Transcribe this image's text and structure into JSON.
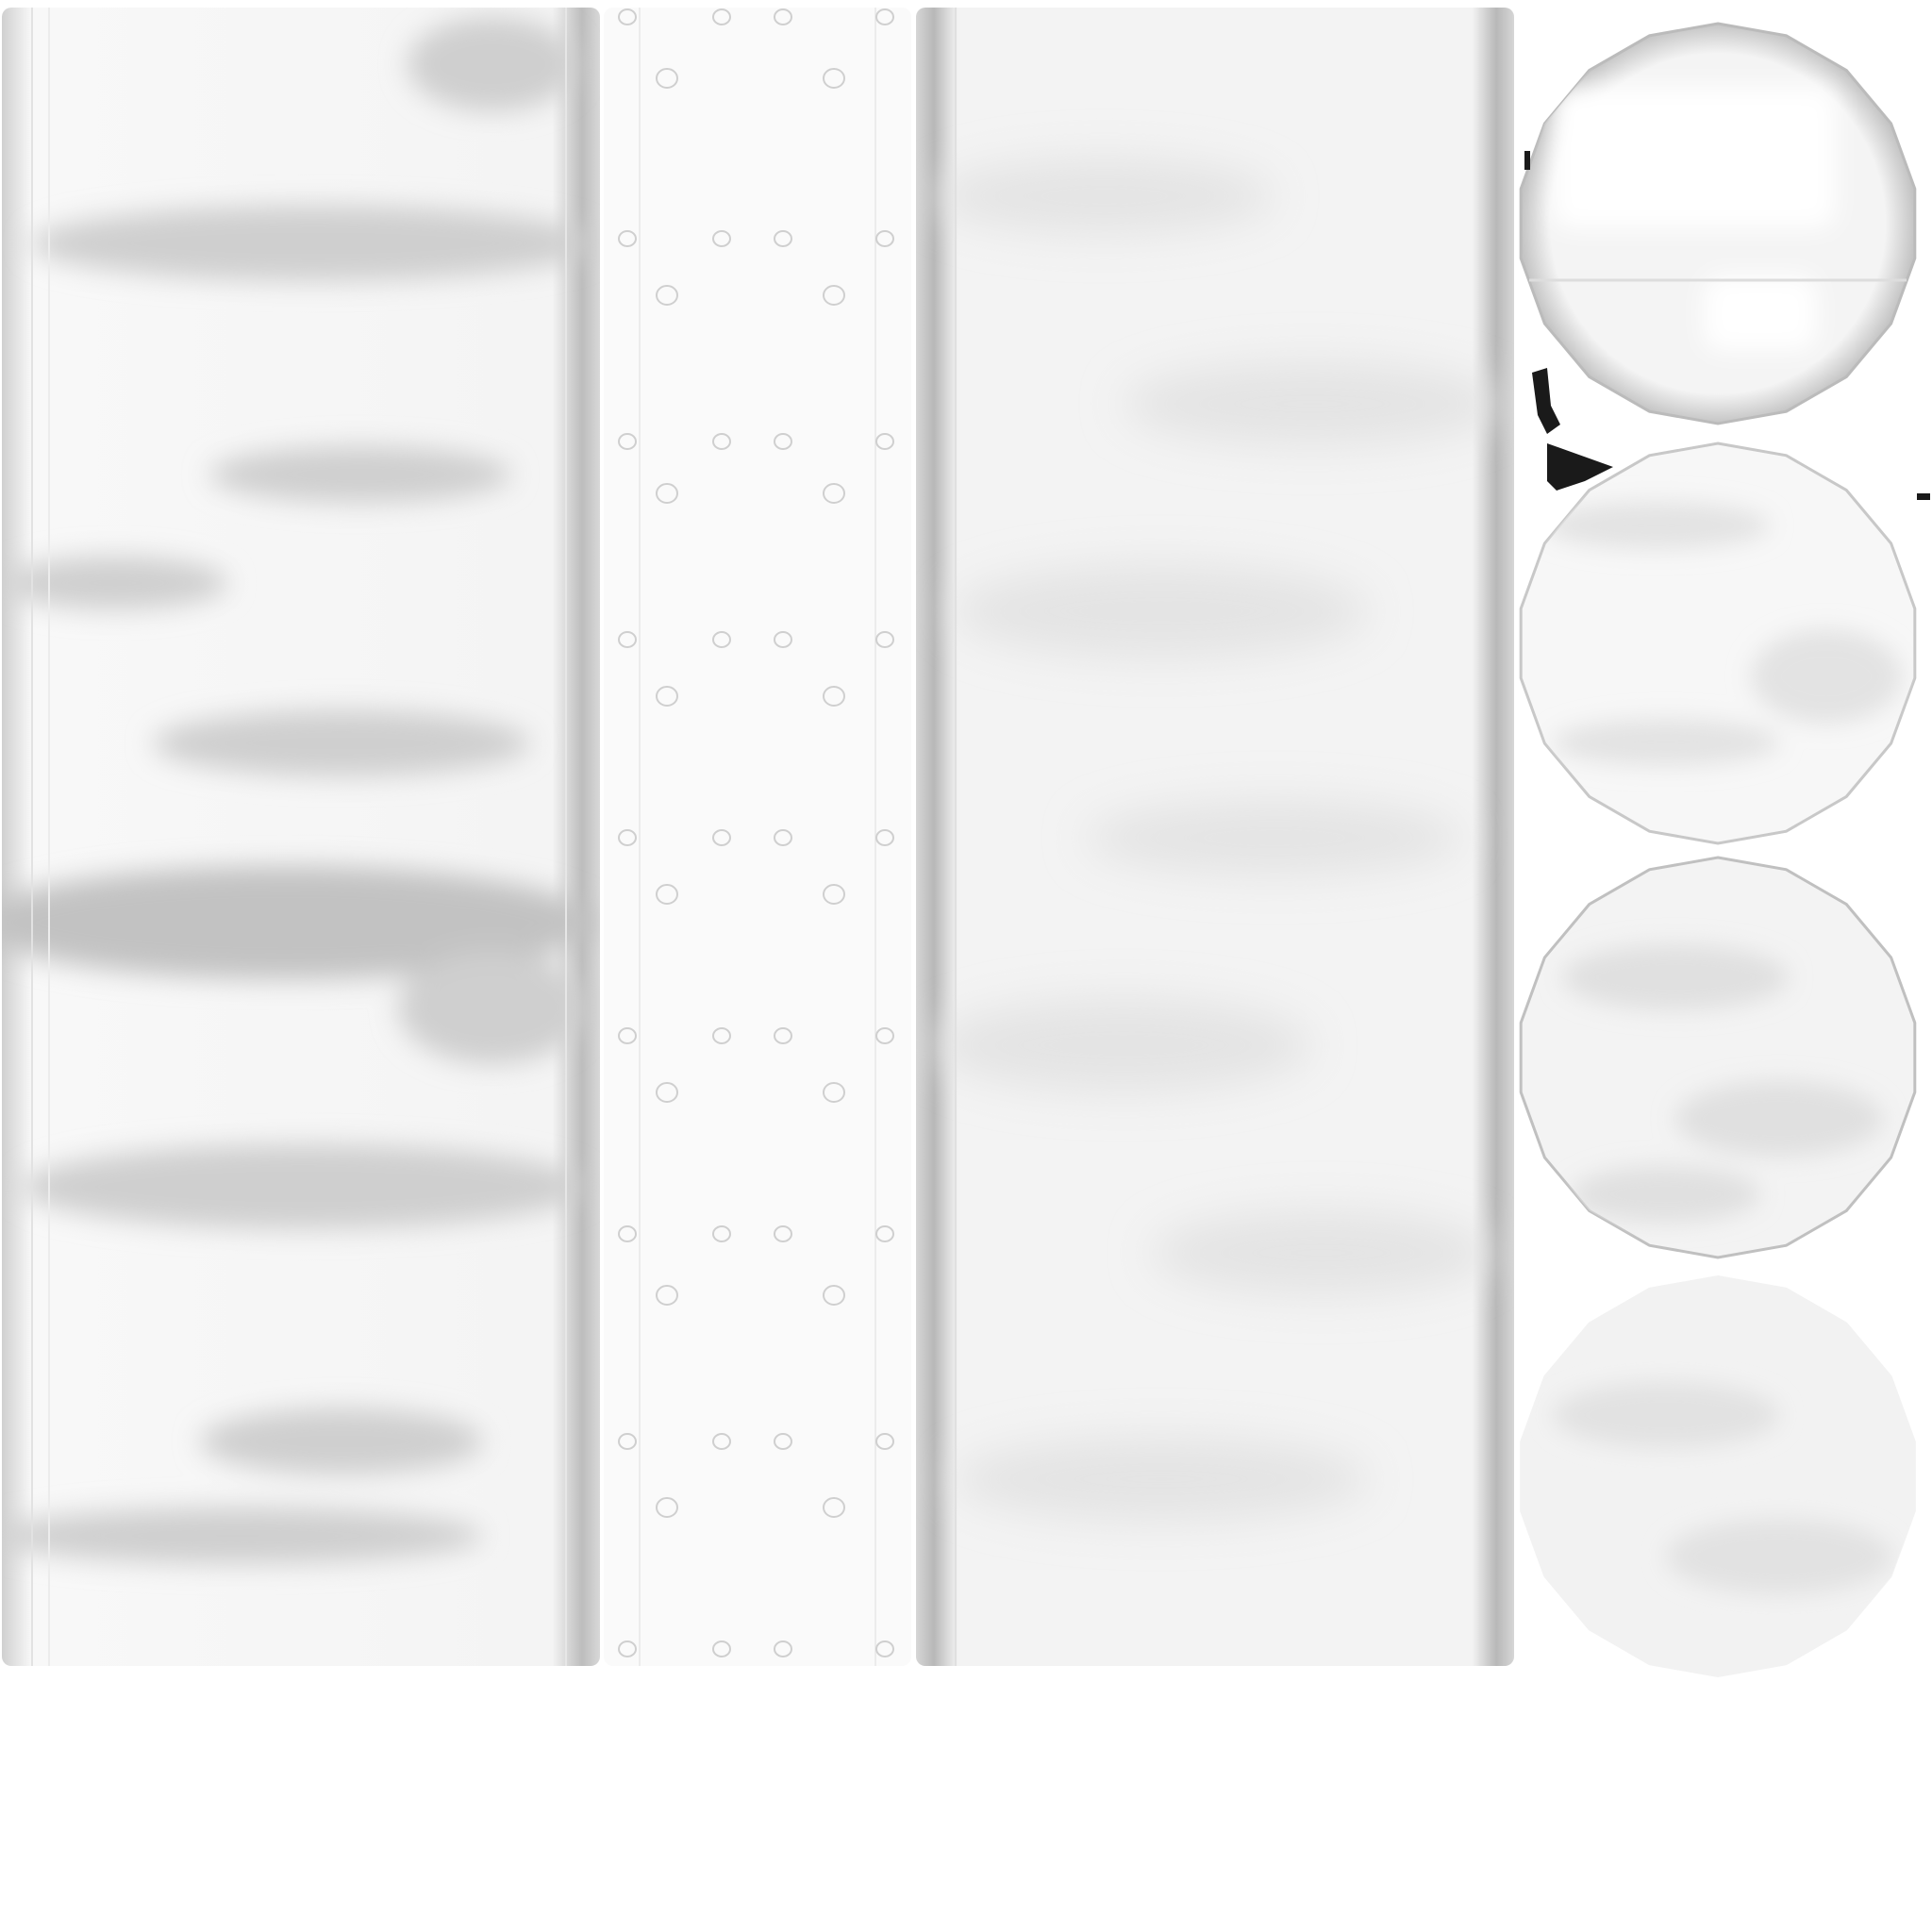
{
  "texture_atlas": {
    "background": "#ffffff",
    "base_tone": "#f2f2f2",
    "shadow_tone": "#c8c8c8",
    "edge_tone": "#b4b4b4",
    "strips": [
      {
        "name": "streaked-panel",
        "pattern": "horizontal-smears"
      },
      {
        "name": "riveted-panel",
        "pattern": "dot-grid"
      },
      {
        "name": "cloudy-panel",
        "pattern": "soft-mottle"
      }
    ],
    "discs": [
      {
        "name": "disc-top",
        "pattern": "banded"
      },
      {
        "name": "disc-second",
        "pattern": "banded-light"
      },
      {
        "name": "disc-third",
        "pattern": "mottled"
      },
      {
        "name": "disc-bottom",
        "pattern": "mottled-light"
      }
    ],
    "artifact_color": "#1a1a1a"
  }
}
